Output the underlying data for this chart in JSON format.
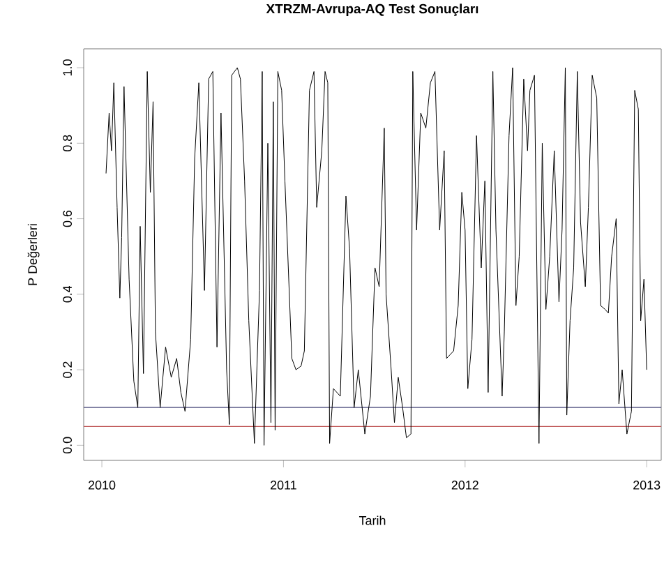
{
  "chart_data": {
    "type": "line",
    "title": "XTRZM-Avrupa-AQ Test Sonuçları",
    "xlabel": "Tarih",
    "ylabel": "P Değerleri",
    "xlim": [
      2009.9,
      2013.08
    ],
    "xticks": [
      2010,
      2011,
      2012,
      2013
    ],
    "ylim": [
      -0.04,
      1.05
    ],
    "yticks": [
      {
        "value": 0,
        "label": "0.0"
      },
      {
        "value": 0.2,
        "label": "0.2"
      },
      {
        "value": 0.4,
        "label": "0.4"
      },
      {
        "value": 0.6,
        "label": "0.6"
      },
      {
        "value": 0.8,
        "label": "0.8"
      },
      {
        "value": 1,
        "label": "1.0"
      }
    ],
    "grid": false,
    "marker": "none",
    "line_style": "solid",
    "ref_lines": [
      {
        "axis": "y",
        "value": 0.1,
        "color": "#4a4a7a"
      },
      {
        "axis": "y",
        "value": 0.05,
        "color": "#c05a5a"
      }
    ],
    "series": [
      {
        "color": "#000000",
        "x": [
          2010.023,
          2010.04,
          2010.053,
          2010.066,
          2010.084,
          2010.099,
          2010.109,
          2010.122,
          2010.15,
          2010.176,
          2010.198,
          2010.211,
          2010.229,
          2010.25,
          2010.267,
          2010.282,
          2010.295,
          2010.321,
          2010.351,
          2010.382,
          2010.412,
          2010.435,
          2010.458,
          2010.489,
          2010.511,
          2010.534,
          2010.565,
          2010.588,
          2010.611,
          2010.634,
          2010.656,
          2010.687,
          2010.702,
          2010.715,
          2010.746,
          2010.763,
          2010.786,
          2010.809,
          2010.84,
          2010.868,
          2010.883,
          2010.893,
          2010.914,
          2010.931,
          2010.944,
          2010.954,
          2010.969,
          2010.99,
          2011.008,
          2011.046,
          2011.069,
          2011.097,
          2011.115,
          2011.143,
          2011.168,
          2011.183,
          2011.211,
          2011.229,
          2011.244,
          2011.254,
          2011.275,
          2011.313,
          2011.344,
          2011.364,
          2011.389,
          2011.412,
          2011.448,
          2011.479,
          2011.504,
          2011.527,
          2011.555,
          2011.565,
          2011.593,
          2011.611,
          2011.632,
          2011.656,
          2011.677,
          2011.702,
          2011.712,
          2011.733,
          2011.756,
          2011.784,
          2011.809,
          2011.834,
          2011.86,
          2011.885,
          2011.898,
          2011.937,
          2011.962,
          2011.982,
          2012.0,
          2012.015,
          2012.038,
          2012.063,
          2012.089,
          2012.109,
          2012.127,
          2012.153,
          2012.17,
          2012.204,
          2012.216,
          2012.242,
          2012.262,
          2012.28,
          2012.298,
          2012.323,
          2012.344,
          2012.357,
          2012.382,
          2012.407,
          2012.425,
          2012.445,
          2012.466,
          2012.491,
          2012.517,
          2012.534,
          2012.552,
          2012.56,
          2012.578,
          2012.598,
          2012.618,
          2012.636,
          2012.662,
          2012.679,
          2012.7,
          2012.725,
          2012.746,
          2012.771,
          2012.789,
          2012.807,
          2012.832,
          2012.847,
          2012.865,
          2012.891,
          2012.916,
          2012.934,
          2012.954,
          2012.967,
          2012.985,
          2013.0
        ],
        "values": [
          0.72,
          0.88,
          0.78,
          0.96,
          0.63,
          0.39,
          0.55,
          0.95,
          0.44,
          0.17,
          0.1,
          0.58,
          0.19,
          0.99,
          0.67,
          0.91,
          0.3,
          0.1,
          0.26,
          0.18,
          0.23,
          0.14,
          0.09,
          0.28,
          0.76,
          0.96,
          0.41,
          0.97,
          0.99,
          0.26,
          0.88,
          0.2,
          0.055,
          0.98,
          1.0,
          0.97,
          0.7,
          0.33,
          0.005,
          0.41,
          0.99,
          0.0,
          0.8,
          0.06,
          0.91,
          0.04,
          0.99,
          0.94,
          0.7,
          0.23,
          0.2,
          0.21,
          0.25,
          0.94,
          0.99,
          0.63,
          0.78,
          0.99,
          0.96,
          0.005,
          0.15,
          0.13,
          0.66,
          0.52,
          0.1,
          0.2,
          0.03,
          0.13,
          0.47,
          0.42,
          0.84,
          0.4,
          0.2,
          0.06,
          0.18,
          0.1,
          0.02,
          0.03,
          0.99,
          0.57,
          0.88,
          0.84,
          0.96,
          0.99,
          0.57,
          0.78,
          0.23,
          0.25,
          0.37,
          0.67,
          0.57,
          0.15,
          0.28,
          0.82,
          0.47,
          0.7,
          0.14,
          0.99,
          0.57,
          0.13,
          0.3,
          0.82,
          1.0,
          0.37,
          0.5,
          0.97,
          0.78,
          0.94,
          0.98,
          0.005,
          0.8,
          0.36,
          0.5,
          0.78,
          0.38,
          0.57,
          1.0,
          0.08,
          0.33,
          0.47,
          0.99,
          0.59,
          0.42,
          0.63,
          0.98,
          0.92,
          0.37,
          0.36,
          0.35,
          0.5,
          0.6,
          0.11,
          0.2,
          0.03,
          0.09,
          0.94,
          0.89,
          0.33,
          0.44,
          0.2
        ]
      }
    ]
  }
}
